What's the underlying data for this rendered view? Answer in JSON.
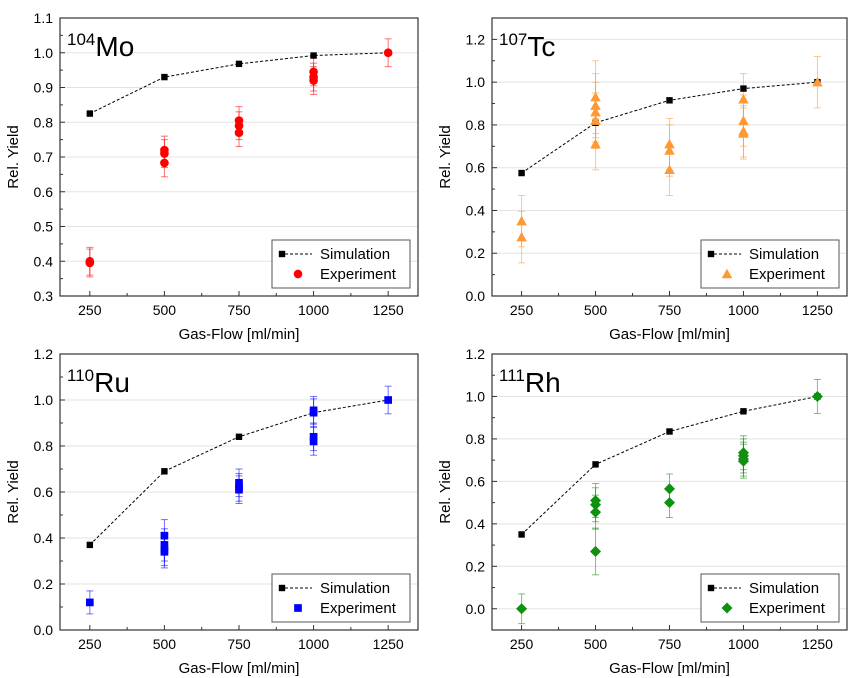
{
  "figure": {
    "colors": {
      "simulation": "#000000",
      "grid": "#e3e3e3"
    }
  },
  "chart_data": [
    {
      "type": "scatter",
      "title": "Mo",
      "title_sup": "104",
      "xlabel": "Gas-Flow [ml/min]",
      "ylabel": "Rel. Yield",
      "xlim": [
        150,
        1350
      ],
      "ylim": [
        0.3,
        1.1
      ],
      "xticks": [
        250,
        500,
        750,
        1000,
        1250
      ],
      "yticks": [
        0.3,
        0.4,
        0.5,
        0.6,
        0.7,
        0.8,
        0.9,
        1.0,
        1.1
      ],
      "ytick_labels": [
        "0.3",
        "0.4",
        "0.5",
        "0.6",
        "0.7",
        "0.8",
        "0.9",
        "1.0",
        "1.1"
      ],
      "grid": true,
      "legend_position": "bottom-right",
      "series": [
        {
          "name": "Simulation",
          "kind": "line-marker",
          "marker": "square",
          "color": "#000000",
          "x": [
            250,
            500,
            750,
            1000,
            1250
          ],
          "y": [
            0.825,
            0.93,
            0.968,
            0.992,
            1.0
          ]
        },
        {
          "name": "Experiment",
          "kind": "scatter",
          "marker": "circle",
          "color": "#ff0000",
          "x": [
            250,
            250,
            500,
            500,
            500,
            750,
            750,
            750,
            1000,
            1000,
            1000,
            1250
          ],
          "y": [
            0.395,
            0.4,
            0.683,
            0.71,
            0.72,
            0.77,
            0.79,
            0.805,
            0.92,
            0.93,
            0.945,
            1.0
          ],
          "err": [
            0.04,
            0.04,
            0.04,
            0.04,
            0.04,
            0.04,
            0.04,
            0.04,
            0.04,
            0.04,
            0.04,
            0.04
          ]
        }
      ]
    },
    {
      "type": "scatter",
      "title": "Tc",
      "title_sup": "107",
      "xlabel": "Gas-Flow [ml/min]",
      "ylabel": "Rel. Yield",
      "xlim": [
        150,
        1350
      ],
      "ylim": [
        0,
        1.3
      ],
      "xticks": [
        250,
        500,
        750,
        1000,
        1250
      ],
      "yticks": [
        0,
        0.2,
        0.4,
        0.6,
        0.8,
        1.0,
        1.2
      ],
      "ytick_labels": [
        "0.0",
        "0.2",
        "0.4",
        "0.6",
        "0.8",
        "1.0",
        "1.2"
      ],
      "grid": true,
      "legend_position": "bottom-right",
      "series": [
        {
          "name": "Simulation",
          "kind": "line-marker",
          "marker": "square",
          "color": "#000000",
          "x": [
            250,
            500,
            750,
            1000,
            1250
          ],
          "y": [
            0.575,
            0.81,
            0.915,
            0.97,
            1.0
          ]
        },
        {
          "name": "Experiment",
          "kind": "scatter",
          "marker": "triangle",
          "color": "#ff9933",
          "x": [
            250,
            250,
            500,
            500,
            500,
            500,
            500,
            750,
            750,
            750,
            1000,
            1000,
            1000,
            1000,
            1250
          ],
          "y": [
            0.35,
            0.275,
            0.93,
            0.89,
            0.86,
            0.82,
            0.71,
            0.71,
            0.68,
            0.59,
            0.92,
            0.82,
            0.77,
            0.76,
            1.0
          ],
          "err": [
            0.12,
            0.12,
            0.17,
            0.15,
            0.14,
            0.13,
            0.12,
            0.12,
            0.12,
            0.12,
            0.12,
            0.12,
            0.12,
            0.12,
            0.12
          ]
        }
      ]
    },
    {
      "type": "scatter",
      "title": "Ru",
      "title_sup": "110",
      "xlabel": "Gas-Flow [ml/min]",
      "ylabel": "Rel. Yield",
      "xlim": [
        150,
        1350
      ],
      "ylim": [
        0,
        1.2
      ],
      "xticks": [
        250,
        500,
        750,
        1000,
        1250
      ],
      "yticks": [
        0,
        0.2,
        0.4,
        0.6,
        0.8,
        1.0,
        1.2
      ],
      "ytick_labels": [
        "0.0",
        "0.2",
        "0.4",
        "0.6",
        "0.8",
        "1.0",
        "1.2"
      ],
      "grid": true,
      "legend_position": "bottom-right",
      "series": [
        {
          "name": "Simulation",
          "kind": "line-marker",
          "marker": "square",
          "color": "#000000",
          "x": [
            250,
            500,
            750,
            1000,
            1250
          ],
          "y": [
            0.37,
            0.69,
            0.84,
            0.945,
            1.0
          ]
        },
        {
          "name": "Experiment",
          "kind": "scatter",
          "marker": "square",
          "color": "#0000ff",
          "x": [
            250,
            500,
            500,
            500,
            500,
            750,
            750,
            750,
            1000,
            1000,
            1000,
            1000,
            1250
          ],
          "y": [
            0.12,
            0.41,
            0.37,
            0.35,
            0.34,
            0.64,
            0.62,
            0.61,
            0.955,
            0.945,
            0.84,
            0.82,
            1.0
          ],
          "err": [
            0.05,
            0.07,
            0.07,
            0.07,
            0.07,
            0.06,
            0.06,
            0.06,
            0.06,
            0.06,
            0.06,
            0.06,
            0.06
          ]
        }
      ]
    },
    {
      "type": "scatter",
      "title": "Rh",
      "title_sup": "111",
      "xlabel": "Gas-Flow [ml/min]",
      "ylabel": "Rel. Yield",
      "xlim": [
        150,
        1350
      ],
      "ylim": [
        -0.1,
        1.2
      ],
      "xticks": [
        250,
        500,
        750,
        1000,
        1250
      ],
      "yticks": [
        0,
        0.2,
        0.4,
        0.6,
        0.8,
        1.0,
        1.2
      ],
      "ytick_labels": [
        "0.0",
        "0.2",
        "0.4",
        "0.6",
        "0.8",
        "1.0",
        "1.2"
      ],
      "grid": true,
      "legend_position": "bottom-right",
      "series": [
        {
          "name": "Simulation",
          "kind": "line-marker",
          "marker": "square",
          "color": "#000000",
          "x": [
            250,
            500,
            750,
            1000,
            1250
          ],
          "y": [
            0.35,
            0.68,
            0.835,
            0.93,
            1.0
          ]
        },
        {
          "name": "Experiment",
          "kind": "scatter",
          "marker": "diamond",
          "color": "#109010",
          "x": [
            250,
            500,
            500,
            500,
            500,
            750,
            750,
            1000,
            1000,
            1000,
            1000,
            1250
          ],
          "y": [
            0.0,
            0.51,
            0.49,
            0.455,
            0.27,
            0.565,
            0.5,
            0.735,
            0.72,
            0.705,
            0.695,
            1.0
          ],
          "err": [
            0.07,
            0.08,
            0.08,
            0.08,
            0.11,
            0.07,
            0.07,
            0.08,
            0.08,
            0.08,
            0.08,
            0.08
          ]
        }
      ]
    }
  ]
}
